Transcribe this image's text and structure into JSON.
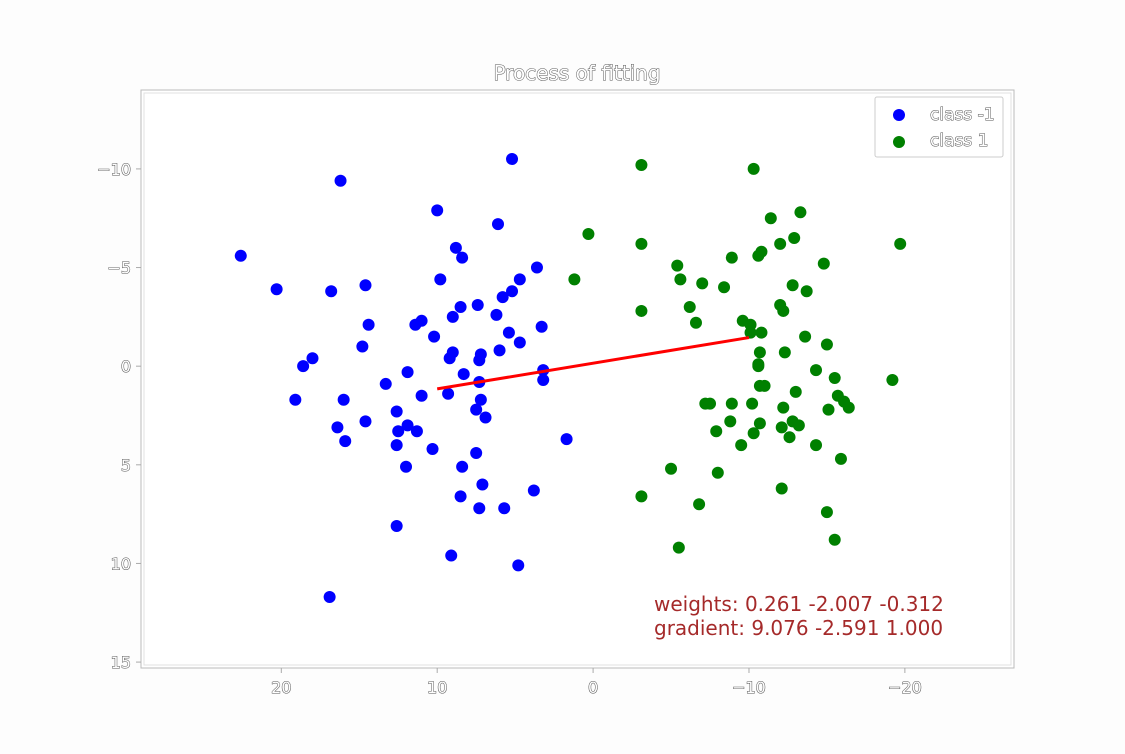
{
  "chart_data": {
    "type": "scatter",
    "title": "Process of fitting",
    "xlabel": "",
    "ylabel": "",
    "xlim": [
      29,
      -27
    ],
    "ylim": [
      15.3,
      -14
    ],
    "x_inverted": true,
    "y_inverted": true,
    "grid": false,
    "legend_position": "top-right",
    "xticks": [
      20,
      10,
      0,
      -10,
      -20
    ],
    "xtick_labels": [
      "20",
      "10",
      "0",
      "−10",
      "−20"
    ],
    "yticks": [
      -10,
      -5,
      0,
      5,
      10,
      15
    ],
    "ytick_labels": [
      "−10",
      "−5",
      "0",
      "5",
      "10",
      "15"
    ],
    "series": [
      {
        "name": "class -1",
        "color": "#0000ff",
        "points": [
          [
            22.6,
            -5.6
          ],
          [
            20.3,
            -3.9
          ],
          [
            16.8,
            -3.8
          ],
          [
            16.2,
            -9.4
          ],
          [
            14.6,
            -4.1
          ],
          [
            14.4,
            -2.1
          ],
          [
            14.8,
            -1.0
          ],
          [
            18.0,
            -0.4
          ],
          [
            18.6,
            -0.0
          ],
          [
            19.1,
            1.7
          ],
          [
            16.0,
            1.7
          ],
          [
            16.4,
            3.1
          ],
          [
            15.9,
            3.8
          ],
          [
            14.6,
            2.8
          ],
          [
            13.3,
            0.9
          ],
          [
            12.6,
            2.3
          ],
          [
            12.5,
            3.3
          ],
          [
            12.6,
            4.0
          ],
          [
            11.9,
            3.0
          ],
          [
            11.3,
            3.3
          ],
          [
            11.0,
            1.5
          ],
          [
            11.0,
            -2.3
          ],
          [
            11.4,
            -2.1
          ],
          [
            10.2,
            -1.5
          ],
          [
            10.3,
            4.2
          ],
          [
            12.0,
            5.1
          ],
          [
            12.6,
            8.1
          ],
          [
            11.9,
            0.3
          ],
          [
            9.8,
            -4.4
          ],
          [
            10.0,
            -7.9
          ],
          [
            8.8,
            -6.0
          ],
          [
            8.4,
            -5.5
          ],
          [
            8.5,
            -3.0
          ],
          [
            9.0,
            -2.5
          ],
          [
            9.0,
            -0.7
          ],
          [
            9.2,
            -0.4
          ],
          [
            8.3,
            0.4
          ],
          [
            9.3,
            1.4
          ],
          [
            7.4,
            -3.1
          ],
          [
            7.2,
            -0.6
          ],
          [
            7.3,
            -0.3
          ],
          [
            7.3,
            0.8
          ],
          [
            7.2,
            1.7
          ],
          [
            7.5,
            2.2
          ],
          [
            6.9,
            2.6
          ],
          [
            6.2,
            -2.6
          ],
          [
            6.0,
            -0.8
          ],
          [
            5.4,
            -1.7
          ],
          [
            4.7,
            -1.2
          ],
          [
            5.2,
            -3.8
          ],
          [
            5.8,
            -3.5
          ],
          [
            4.7,
            -4.4
          ],
          [
            3.6,
            -5.0
          ],
          [
            6.1,
            -7.2
          ],
          [
            5.2,
            -10.5
          ],
          [
            3.3,
            -2.0
          ],
          [
            3.2,
            0.2
          ],
          [
            3.2,
            0.7
          ],
          [
            1.7,
            3.7
          ],
          [
            8.4,
            5.1
          ],
          [
            7.5,
            4.4
          ],
          [
            7.1,
            6.0
          ],
          [
            8.5,
            6.6
          ],
          [
            7.3,
            7.2
          ],
          [
            5.7,
            7.2
          ],
          [
            3.8,
            6.3
          ],
          [
            9.1,
            9.6
          ],
          [
            4.8,
            10.1
          ],
          [
            16.9,
            11.7
          ]
        ]
      },
      {
        "name": "class 1",
        "color": "#008000",
        "points": [
          [
            -3.1,
            -10.2
          ],
          [
            -10.3,
            -10.0
          ],
          [
            0.3,
            -6.7
          ],
          [
            -3.1,
            -6.2
          ],
          [
            1.2,
            -4.4
          ],
          [
            -5.4,
            -5.1
          ],
          [
            -5.6,
            -4.4
          ],
          [
            -7.0,
            -4.2
          ],
          [
            -8.4,
            -4.0
          ],
          [
            -8.9,
            -5.5
          ],
          [
            -10.6,
            -5.6
          ],
          [
            -10.8,
            -5.8
          ],
          [
            -12.0,
            -6.2
          ],
          [
            -12.9,
            -6.5
          ],
          [
            -11.4,
            -7.5
          ],
          [
            -13.3,
            -7.8
          ],
          [
            -14.8,
            -5.2
          ],
          [
            -12.8,
            -4.1
          ],
          [
            -13.7,
            -3.8
          ],
          [
            -12.0,
            -3.1
          ],
          [
            -12.2,
            -2.8
          ],
          [
            -3.1,
            -2.8
          ],
          [
            -6.2,
            -3.0
          ],
          [
            -6.6,
            -2.2
          ],
          [
            -9.6,
            -2.3
          ],
          [
            -10.1,
            -2.1
          ],
          [
            -10.1,
            -1.7
          ],
          [
            -10.8,
            -1.7
          ],
          [
            -13.6,
            -1.5
          ],
          [
            -15.0,
            -1.1
          ],
          [
            -12.3,
            -0.7
          ],
          [
            -10.7,
            -0.7
          ],
          [
            -10.6,
            -0.1
          ],
          [
            -10.6,
            0.0
          ],
          [
            -14.3,
            0.2
          ],
          [
            -15.5,
            0.6
          ],
          [
            -10.7,
            1.0
          ],
          [
            -11.0,
            1.0
          ],
          [
            -13.0,
            1.3
          ],
          [
            -19.2,
            0.7
          ],
          [
            -15.7,
            1.5
          ],
          [
            -16.1,
            1.8
          ],
          [
            -16.4,
            2.1
          ],
          [
            -15.1,
            2.2
          ],
          [
            -12.2,
            2.1
          ],
          [
            -12.8,
            2.8
          ],
          [
            -7.2,
            1.9
          ],
          [
            -7.5,
            1.9
          ],
          [
            -8.9,
            1.9
          ],
          [
            -10.2,
            1.9
          ],
          [
            -8.8,
            2.8
          ],
          [
            -10.7,
            2.9
          ],
          [
            -12.1,
            3.1
          ],
          [
            -13.2,
            3.0
          ],
          [
            -7.9,
            3.3
          ],
          [
            -10.3,
            3.4
          ],
          [
            -9.5,
            4.0
          ],
          [
            -12.6,
            3.6
          ],
          [
            -14.3,
            4.0
          ],
          [
            -15.9,
            4.7
          ],
          [
            -5.0,
            5.2
          ],
          [
            -8.0,
            5.4
          ],
          [
            -12.1,
            6.2
          ],
          [
            -3.1,
            6.6
          ],
          [
            -6.8,
            7.0
          ],
          [
            -15.0,
            7.4
          ],
          [
            -15.5,
            8.8
          ],
          [
            -5.5,
            9.2
          ],
          [
            -19.7,
            -6.2
          ]
        ]
      }
    ],
    "fit_line": {
      "color": "#ff0000",
      "x": [
        10.0,
        -10.0
      ],
      "y": [
        1.15,
        -1.45
      ]
    },
    "annotation": {
      "color": "#a52a2a",
      "lines": [
        "weights: 0.261  -2.007  -0.312",
        "gradient: 9.076  -2.591  1.000"
      ]
    }
  }
}
